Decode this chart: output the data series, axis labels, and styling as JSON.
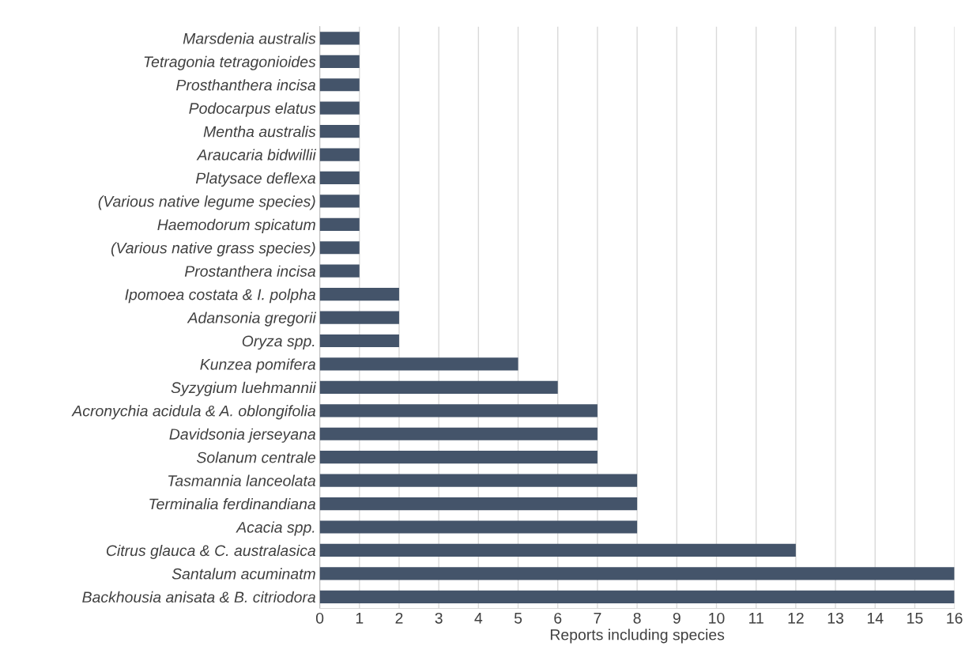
{
  "chart_data": {
    "type": "bar",
    "orientation": "horizontal",
    "xlabel": "Reports including species",
    "categories": [
      "Marsdenia australis",
      "Tetragonia tetragonioides",
      "Prosthanthera incisa",
      "Podocarpus elatus",
      "Mentha australis",
      "Araucaria bidwillii",
      "Platysace deflexa",
      "(Various native legume species)",
      "Haemodorum spicatum",
      "(Various native grass species)",
      "Prostanthera incisa",
      "Ipomoea costata & I. polpha",
      "Adansonia gregorii",
      "Oryza spp.",
      "Kunzea pomifera",
      "Syzygium luehmannii",
      "Acronychia acidula & A. oblongifolia",
      "Davidsonia jerseyana",
      "Solanum centrale",
      "Tasmannia lanceolata",
      "Terminalia ferdinandiana",
      "Acacia spp.",
      "Citrus glauca & C. australasica",
      "Santalum acuminatm",
      "Backhousia anisata & B. citriodora"
    ],
    "values": [
      1,
      1,
      1,
      1,
      1,
      1,
      1,
      1,
      1,
      1,
      1,
      2,
      2,
      2,
      5,
      6,
      7,
      7,
      7,
      8,
      8,
      8,
      12,
      16,
      16
    ],
    "color": "#44546a",
    "xlim": [
      0,
      16
    ],
    "xticks": [
      0,
      1,
      2,
      3,
      4,
      5,
      6,
      7,
      8,
      9,
      10,
      11,
      12,
      13,
      14,
      15,
      16
    ],
    "grid": "x"
  }
}
